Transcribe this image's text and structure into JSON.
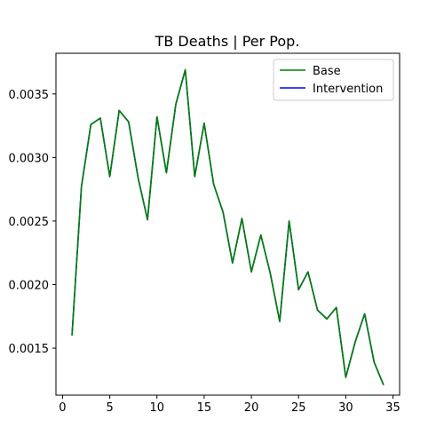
{
  "chart_data": {
    "type": "line",
    "title": "TB Deaths | Per Pop.",
    "xlabel": "",
    "ylabel": "",
    "xlim": [
      -0.7,
      35.7
    ],
    "ylim": [
      0.00113,
      0.00382
    ],
    "x_ticks": [
      0,
      5,
      10,
      15,
      20,
      25,
      30,
      35
    ],
    "y_ticks": [
      0.0015,
      0.002,
      0.0025,
      0.003,
      0.0035
    ],
    "x_tick_labels": [
      "0",
      "5",
      "10",
      "15",
      "20",
      "25",
      "30",
      "35"
    ],
    "y_tick_labels": [
      "0.0015",
      "0.0020",
      "0.0025",
      "0.0030",
      "0.0035"
    ],
    "grid": false,
    "legend_position": "top-right",
    "x": [
      1,
      2,
      3,
      4,
      5,
      6,
      7,
      8,
      9,
      10,
      11,
      12,
      13,
      14,
      15,
      16,
      17,
      18,
      19,
      20,
      21,
      22,
      23,
      24,
      25,
      26,
      27,
      28,
      29,
      30,
      31,
      32,
      33,
      34
    ],
    "series": [
      {
        "name": "Base",
        "color": "#008000",
        "values": [
          0.0016,
          0.00277,
          0.00326,
          0.00331,
          0.00285,
          0.00337,
          0.00328,
          0.00284,
          0.00251,
          0.00332,
          0.00288,
          0.00342,
          0.00369,
          0.00285,
          0.00327,
          0.00279,
          0.00257,
          0.00217,
          0.00252,
          0.0021,
          0.00239,
          0.00209,
          0.00171,
          0.0025,
          0.00196,
          0.0021,
          0.0018,
          0.00173,
          0.00182,
          0.00127,
          0.00155,
          0.00177,
          0.00139,
          0.00121
        ]
      },
      {
        "name": "Intervention",
        "color": "#0000ff",
        "values": [
          0.0016,
          0.00277,
          0.00326,
          0.00331,
          0.00285,
          0.00337,
          0.00328,
          0.00284,
          0.00251,
          0.00332,
          0.00288,
          0.00342,
          0.00369,
          0.00285,
          0.00327,
          0.00279,
          0.00257,
          0.00217,
          0.00252,
          0.0021,
          0.00239,
          0.00209,
          0.00171,
          0.0025,
          0.00196,
          0.0021,
          0.0018,
          0.00173,
          0.00182,
          0.00127,
          0.00155,
          0.00177,
          0.00139,
          0.00121
        ]
      }
    ]
  }
}
